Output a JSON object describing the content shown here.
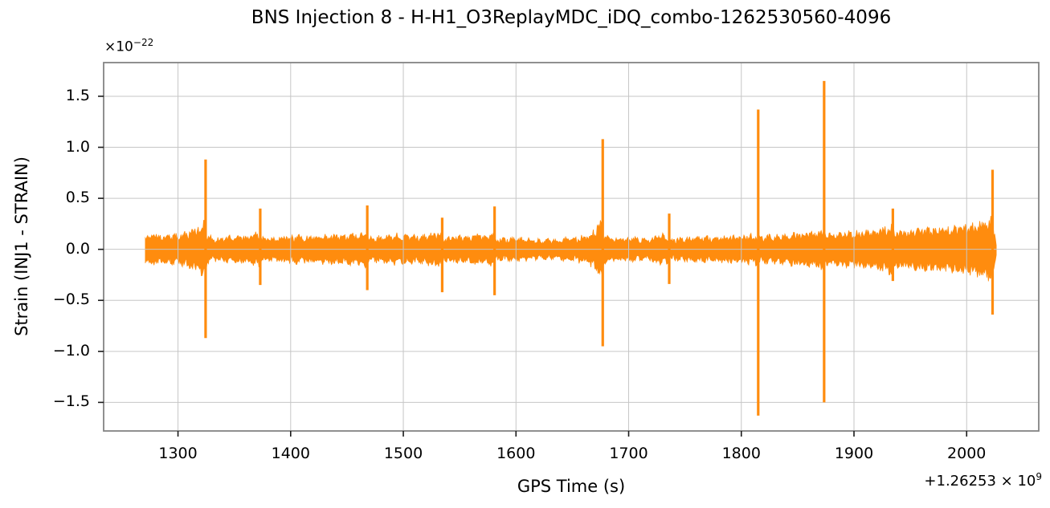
{
  "colors": {
    "series": "#ff8c0e",
    "grid": "#c6c6c6",
    "spine": "#848484",
    "tick": "#1a1a1a",
    "background": "#ffffff",
    "text": "#000000"
  },
  "chart_data": {
    "type": "line",
    "title": "BNS Injection 8 - H-H1_O3ReplayMDC_iDQ_combo-1262530560-4096",
    "xlabel": "GPS Time (s)",
    "ylabel": "Strain (INJ1 - STRAIN)",
    "y_scale_base": "×10",
    "y_scale_exp": "−22",
    "x_offset_base": "+1.26253 × 10",
    "x_offset_exp": "9",
    "grid": true,
    "legend": "none",
    "xlim": [
      1234,
      2064
    ],
    "ylim": [
      -1.78,
      1.83
    ],
    "x_ticks": [
      1300,
      1400,
      1500,
      1600,
      1700,
      1800,
      1900,
      2000
    ],
    "x_tick_labels": [
      "1300",
      "1400",
      "1500",
      "1600",
      "1700",
      "1800",
      "1900",
      "2000"
    ],
    "y_ticks": [
      1.5,
      1.0,
      0.5,
      0.0,
      -0.5,
      -1.0,
      -1.5
    ],
    "y_tick_labels": [
      "1.5",
      "1.0",
      "0.5",
      "0.0",
      "−0.5",
      "−1.0",
      "−1.5"
    ],
    "data_start_t": 1271,
    "data_end_t": 2026.5,
    "noise_envelope": [
      [
        1271,
        0.12
      ],
      [
        1278,
        0.13
      ],
      [
        1290,
        0.12
      ],
      [
        1300,
        0.13
      ],
      [
        1308,
        0.15
      ],
      [
        1316,
        0.18
      ],
      [
        1322,
        0.23
      ],
      [
        1324,
        0.25
      ],
      [
        1326,
        0.11
      ],
      [
        1338,
        0.1
      ],
      [
        1352,
        0.12
      ],
      [
        1362,
        0.11
      ],
      [
        1369,
        0.14
      ],
      [
        1372,
        0.15
      ],
      [
        1374,
        0.1
      ],
      [
        1385,
        0.1
      ],
      [
        1400,
        0.12
      ],
      [
        1415,
        0.11
      ],
      [
        1430,
        0.12
      ],
      [
        1445,
        0.12
      ],
      [
        1458,
        0.13
      ],
      [
        1465,
        0.15
      ],
      [
        1467,
        0.16
      ],
      [
        1469,
        0.1
      ],
      [
        1480,
        0.11
      ],
      [
        1495,
        0.13
      ],
      [
        1505,
        0.12
      ],
      [
        1520,
        0.13
      ],
      [
        1530,
        0.14
      ],
      [
        1534,
        0.13
      ],
      [
        1536,
        0.1
      ],
      [
        1545,
        0.11
      ],
      [
        1560,
        0.12
      ],
      [
        1572,
        0.13
      ],
      [
        1579,
        0.14
      ],
      [
        1582,
        0.09
      ],
      [
        1595,
        0.1
      ],
      [
        1610,
        0.09
      ],
      [
        1625,
        0.08
      ],
      [
        1640,
        0.09
      ],
      [
        1652,
        0.1
      ],
      [
        1662,
        0.12
      ],
      [
        1670,
        0.17
      ],
      [
        1674,
        0.25
      ],
      [
        1676,
        0.3
      ],
      [
        1678,
        0.12
      ],
      [
        1688,
        0.1
      ],
      [
        1700,
        0.1
      ],
      [
        1715,
        0.1
      ],
      [
        1728,
        0.12
      ],
      [
        1734,
        0.13
      ],
      [
        1737,
        0.09
      ],
      [
        1748,
        0.1
      ],
      [
        1762,
        0.1
      ],
      [
        1775,
        0.11
      ],
      [
        1790,
        0.11
      ],
      [
        1805,
        0.12
      ],
      [
        1813,
        0.13
      ],
      [
        1817,
        0.11
      ],
      [
        1828,
        0.12
      ],
      [
        1840,
        0.13
      ],
      [
        1852,
        0.14
      ],
      [
        1862,
        0.15
      ],
      [
        1870,
        0.17
      ],
      [
        1872,
        0.18
      ],
      [
        1875,
        0.13
      ],
      [
        1885,
        0.14
      ],
      [
        1898,
        0.15
      ],
      [
        1910,
        0.16
      ],
      [
        1922,
        0.18
      ],
      [
        1930,
        0.2
      ],
      [
        1933,
        0.21
      ],
      [
        1936,
        0.15
      ],
      [
        1945,
        0.16
      ],
      [
        1958,
        0.17
      ],
      [
        1970,
        0.18
      ],
      [
        1982,
        0.19
      ],
      [
        1995,
        0.2
      ],
      [
        2005,
        0.22
      ],
      [
        2014,
        0.24
      ],
      [
        2020,
        0.26
      ],
      [
        2022,
        0.27
      ],
      [
        2024,
        0.2
      ],
      [
        2025.5,
        0.12
      ],
      [
        2026.5,
        0.02
      ]
    ],
    "spikes": [
      {
        "t": 1324.5,
        "peak": 0.88,
        "trough": -0.87
      },
      {
        "t": 1373,
        "peak": 0.4,
        "trough": -0.35
      },
      {
        "t": 1468,
        "peak": 0.43,
        "trough": -0.4
      },
      {
        "t": 1534.5,
        "peak": 0.31,
        "trough": -0.42
      },
      {
        "t": 1581,
        "peak": 0.42,
        "trough": -0.45
      },
      {
        "t": 1677,
        "peak": 1.08,
        "trough": -0.95
      },
      {
        "t": 1736,
        "peak": 0.35,
        "trough": -0.34
      },
      {
        "t": 1815,
        "peak": 1.37,
        "trough": -1.63
      },
      {
        "t": 1873.5,
        "peak": 1.65,
        "trough": -1.5
      },
      {
        "t": 1934.5,
        "peak": 0.4,
        "trough": -0.31
      },
      {
        "t": 2023,
        "peak": 0.78,
        "trough": -0.64
      }
    ]
  }
}
